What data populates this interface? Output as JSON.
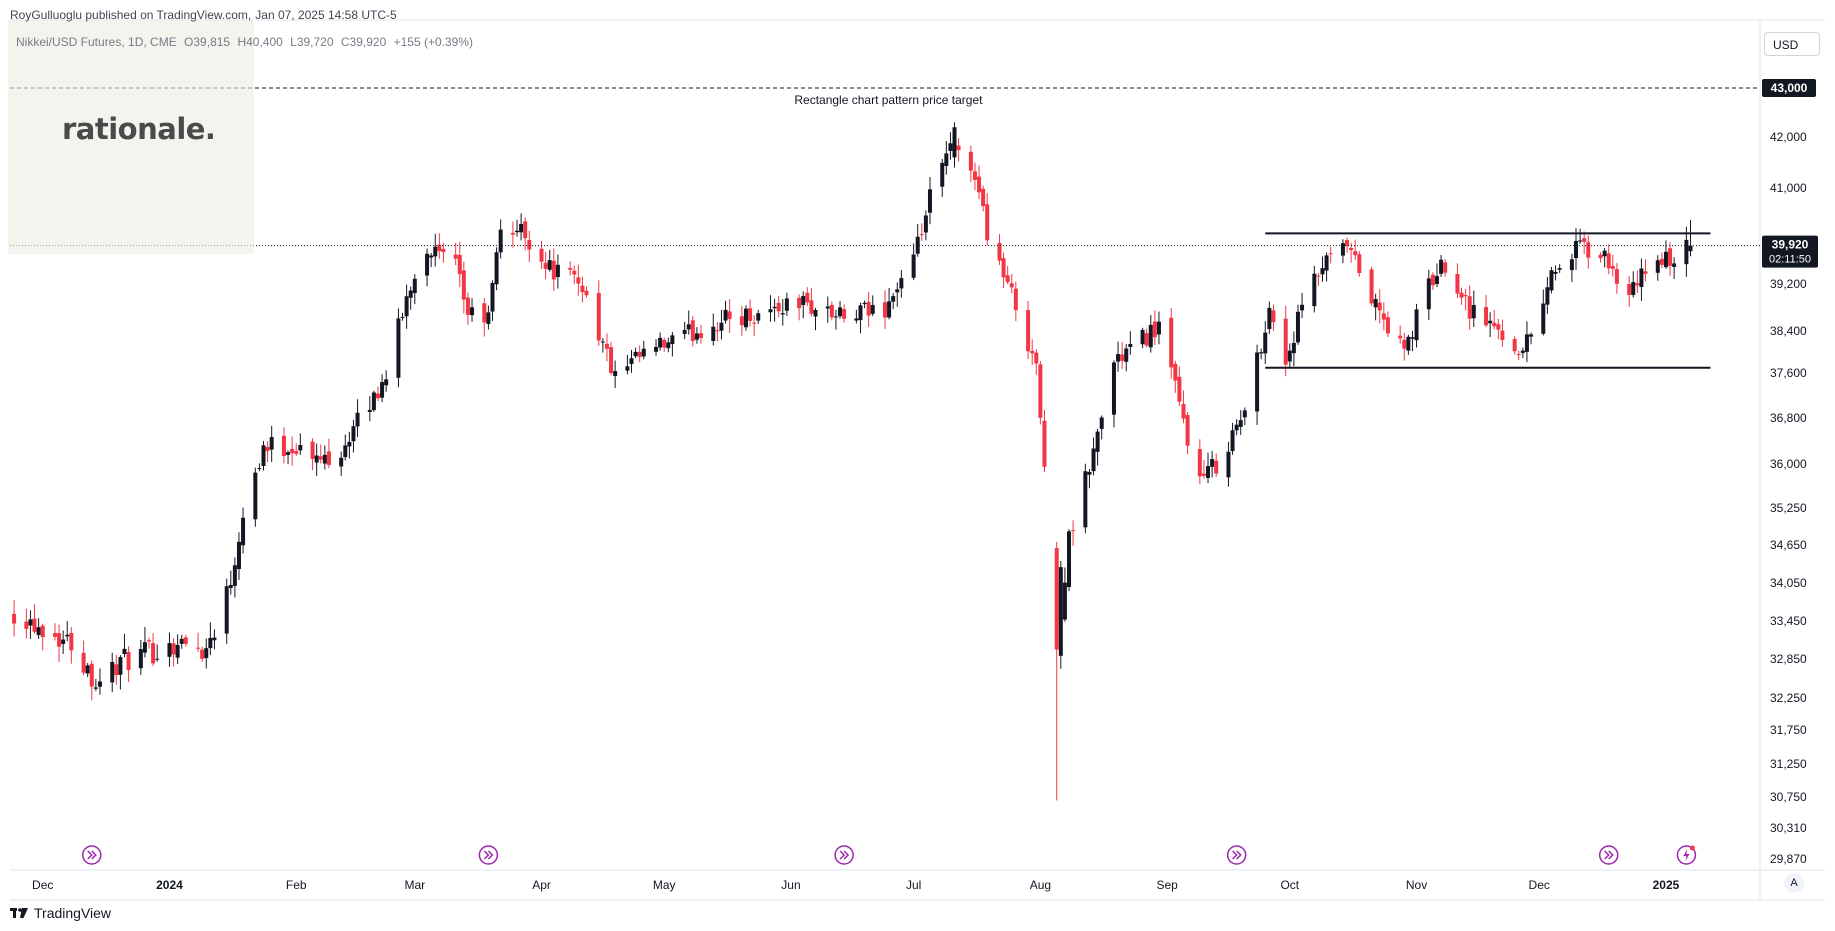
{
  "header": {
    "credit": "RoyGulluoglu published on TradingView.com,",
    "date": "Jan 07, 2025 14:58 UTC-5",
    "symbol": "Nikkei/USD Futures, 1D, CME",
    "open": "O39,815",
    "high": "H40,400",
    "low": "L39,720",
    "close": "C39,920",
    "change": "+155 (+0.39%)"
  },
  "watermark": {
    "logo_text": "rationale."
  },
  "currency": "USD",
  "footer": {
    "brand": "TradingView",
    "auto_label": "A"
  },
  "colors": {
    "up": "#131722",
    "down": "#f23645",
    "line": "#131722",
    "price_label": "#131722"
  },
  "chart_data": {
    "type": "candlestick",
    "title": "",
    "xlabel": "",
    "ylabel": "",
    "y_ticks": [
      43000,
      42000,
      41000,
      39920,
      39200,
      38400,
      37600,
      36800,
      36000,
      35250,
      34650,
      34050,
      33450,
      32850,
      32250,
      31750,
      31250,
      30750,
      30310,
      29870
    ],
    "x_tick_labels": [
      "Dec",
      "2024",
      "Feb",
      "Mar",
      "Apr",
      "May",
      "Jun",
      "Jul",
      "Aug",
      "Sep",
      "Oct",
      "Nov",
      "Dec",
      "2025"
    ],
    "x_tick_dates": [
      "2023-12-01",
      "2024-01-01",
      "2024-02-01",
      "2024-03-01",
      "2024-04-01",
      "2024-05-01",
      "2024-06-01",
      "2024-07-01",
      "2024-08-01",
      "2024-09-01",
      "2024-10-01",
      "2024-11-01",
      "2024-12-01",
      "2025-01-01"
    ],
    "x_range": [
      "2023-11-23",
      "2025-01-24"
    ],
    "current_price": 39920,
    "countdown": "02:11:50",
    "target_price": 43000,
    "target_label": "43,000",
    "annotation": "Rectangle chart pattern price target",
    "rectangle": {
      "start": "2024-09-25",
      "end": "2025-01-07",
      "top": 40150,
      "bottom": 37700
    },
    "events": [
      "2023-12-13",
      "2024-03-19",
      "2024-06-14",
      "2024-09-18",
      "2024-12-18",
      "2025-01-06"
    ],
    "keypoints": [
      [
        "2023-11-24",
        33600
      ],
      [
        "2023-12-08",
        33100
      ],
      [
        "2023-12-14",
        32500
      ],
      [
        "2023-12-20",
        32800
      ],
      [
        "2024-01-03",
        33100
      ],
      [
        "2024-01-10",
        33000
      ],
      [
        "2024-01-16",
        34100
      ],
      [
        "2024-01-19",
        35200
      ],
      [
        "2024-01-24",
        36300
      ],
      [
        "2024-02-01",
        36300
      ],
      [
        "2024-02-06",
        36050
      ],
      [
        "2024-02-12",
        36250
      ],
      [
        "2024-02-22",
        37400
      ],
      [
        "2024-02-29",
        39200
      ],
      [
        "2024-03-04",
        39900
      ],
      [
        "2024-03-11",
        39500
      ],
      [
        "2024-03-14",
        38700
      ],
      [
        "2024-03-19",
        38600
      ],
      [
        "2024-03-22",
        40250
      ],
      [
        "2024-03-27",
        40200
      ],
      [
        "2024-04-03",
        39500
      ],
      [
        "2024-04-11",
        39200
      ],
      [
        "2024-04-19",
        37500
      ],
      [
        "2024-04-26",
        37950
      ],
      [
        "2024-05-06",
        38300
      ],
      [
        "2024-05-16",
        38600
      ],
      [
        "2024-05-24",
        38700
      ],
      [
        "2024-06-03",
        38900
      ],
      [
        "2024-06-14",
        38600
      ],
      [
        "2024-06-24",
        38800
      ],
      [
        "2024-07-01",
        39600
      ],
      [
        "2024-07-05",
        40800
      ],
      [
        "2024-07-10",
        41800
      ],
      [
        "2024-07-16",
        41300
      ],
      [
        "2024-07-19",
        40200
      ],
      [
        "2024-07-25",
        39000
      ],
      [
        "2024-07-31",
        37800
      ],
      [
        "2024-08-02",
        35800
      ],
      [
        "2024-08-05",
        33000
      ],
      [
        "2024-08-08",
        34700
      ],
      [
        "2024-08-14",
        36200
      ],
      [
        "2024-08-19",
        37800
      ],
      [
        "2024-08-30",
        38500
      ],
      [
        "2024-09-04",
        37000
      ],
      [
        "2024-09-09",
        35700
      ],
      [
        "2024-09-13",
        36000
      ],
      [
        "2024-09-20",
        36900
      ],
      [
        "2024-09-26",
        38800
      ],
      [
        "2024-09-30",
        37800
      ],
      [
        "2024-10-04",
        38800
      ],
      [
        "2024-10-09",
        39500
      ],
      [
        "2024-10-15",
        39900
      ],
      [
        "2024-10-22",
        38800
      ],
      [
        "2024-10-29",
        38000
      ],
      [
        "2024-11-04",
        39200
      ],
      [
        "2024-11-08",
        39600
      ],
      [
        "2024-11-14",
        38800
      ],
      [
        "2024-11-21",
        38400
      ],
      [
        "2024-11-27",
        38000
      ],
      [
        "2024-12-04",
        39400
      ],
      [
        "2024-12-11",
        39900
      ],
      [
        "2024-12-18",
        39600
      ],
      [
        "2024-12-23",
        38900
      ],
      [
        "2024-12-27",
        39500
      ],
      [
        "2025-01-03",
        39700
      ],
      [
        "2025-01-07",
        39920
      ]
    ]
  }
}
